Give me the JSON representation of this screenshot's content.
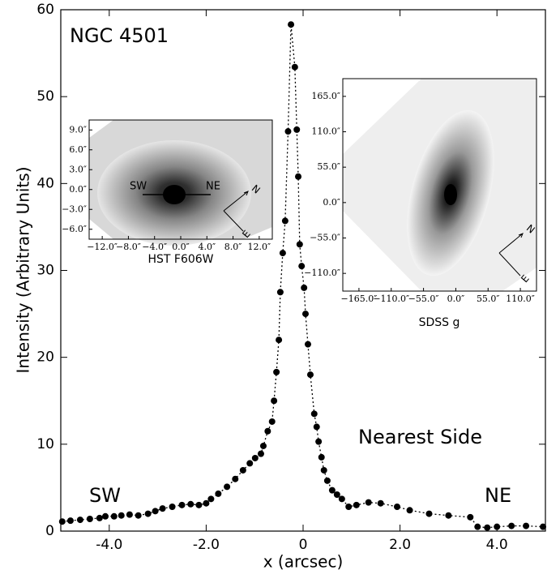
{
  "chart_data": {
    "type": "scatter",
    "xlabel": "x (arcsec)",
    "ylabel": "Intensity (Arbitrary Units)",
    "annotations": [
      "NGC 4501",
      "Nearest Side",
      "SW",
      "NE"
    ],
    "xlim": [
      -5,
      5
    ],
    "ylim": [
      0,
      60
    ],
    "xticks": [
      {
        "value": -4,
        "label": "-4.0"
      },
      {
        "value": -2,
        "label": "-2.0"
      },
      {
        "value": 0,
        "label": "0"
      },
      {
        "value": 2,
        "label": "2.0"
      },
      {
        "value": 4,
        "label": "4.0"
      }
    ],
    "yticks": [
      0,
      10,
      20,
      30,
      40,
      50,
      60
    ],
    "series": [
      {
        "color": "#000000",
        "x": [
          -4.97,
          -4.8,
          -4.6,
          -4.4,
          -4.2,
          -4.08,
          -3.9,
          -3.75,
          -3.58,
          -3.4,
          -3.2,
          -3.05,
          -2.9,
          -2.7,
          -2.5,
          -2.32,
          -2.15,
          -2.0,
          -1.9,
          -1.75,
          -1.57,
          -1.4,
          -1.24,
          -1.1,
          -0.99,
          -0.87,
          -0.82,
          -0.73,
          -0.64,
          -0.6,
          -0.55,
          -0.5,
          -0.47,
          -0.42,
          -0.37,
          -0.31,
          -0.25,
          -0.17,
          -0.13,
          -0.1,
          -0.07,
          -0.03,
          0.02,
          0.05,
          0.1,
          0.15,
          0.23,
          0.28,
          0.32,
          0.38,
          0.43,
          0.5,
          0.6,
          0.7,
          0.8,
          0.94,
          1.1,
          1.35,
          1.6,
          1.94,
          2.2,
          2.6,
          3.0,
          3.45,
          3.6,
          3.8,
          4.0,
          4.3,
          4.6,
          4.95
        ],
        "values": [
          1.1,
          1.2,
          1.3,
          1.4,
          1.5,
          1.7,
          1.7,
          1.8,
          1.9,
          1.8,
          2.0,
          2.3,
          2.6,
          2.8,
          3.0,
          3.1,
          3.0,
          3.2,
          3.7,
          4.3,
          5.1,
          6.0,
          7.0,
          7.8,
          8.4,
          8.9,
          9.8,
          11.5,
          12.6,
          15.0,
          18.3,
          22.0,
          27.5,
          32.0,
          35.7,
          46.0,
          58.3,
          53.4,
          46.2,
          40.8,
          33.0,
          30.5,
          28.0,
          25.0,
          21.5,
          18.0,
          13.5,
          12.0,
          10.3,
          8.5,
          7.0,
          5.8,
          4.7,
          4.2,
          3.7,
          2.8,
          3.0,
          3.3,
          3.2,
          2.8,
          2.4,
          2.0,
          1.8,
          1.6,
          0.5,
          0.4,
          0.5,
          0.6,
          0.6,
          0.5
        ]
      }
    ],
    "insets": [
      {
        "title": "HST F606W",
        "xticklabels": [
          "−12.0″",
          "−8.0″",
          "−4.0″",
          "0.0″",
          "4.0″",
          "8.0″",
          "12.0″"
        ],
        "yticklabels": [
          "9.0″",
          "6.0″",
          "3.0″",
          "0.0″",
          "−3.0″",
          "−6.0″"
        ],
        "labels": [
          "SW",
          "NE"
        ],
        "compass": [
          "N",
          "E"
        ]
      },
      {
        "title": "SDSS g",
        "xticklabels": [
          "−165.0″",
          "−110.0″",
          "−55.0″",
          "0.0″",
          "55.0″",
          "110.0″"
        ],
        "yticklabels": [
          "165.0″",
          "110.0″",
          "55.0″",
          "0.0″",
          "−55.0″",
          "−110.0″"
        ],
        "compass": [
          "N",
          "E"
        ]
      }
    ]
  }
}
